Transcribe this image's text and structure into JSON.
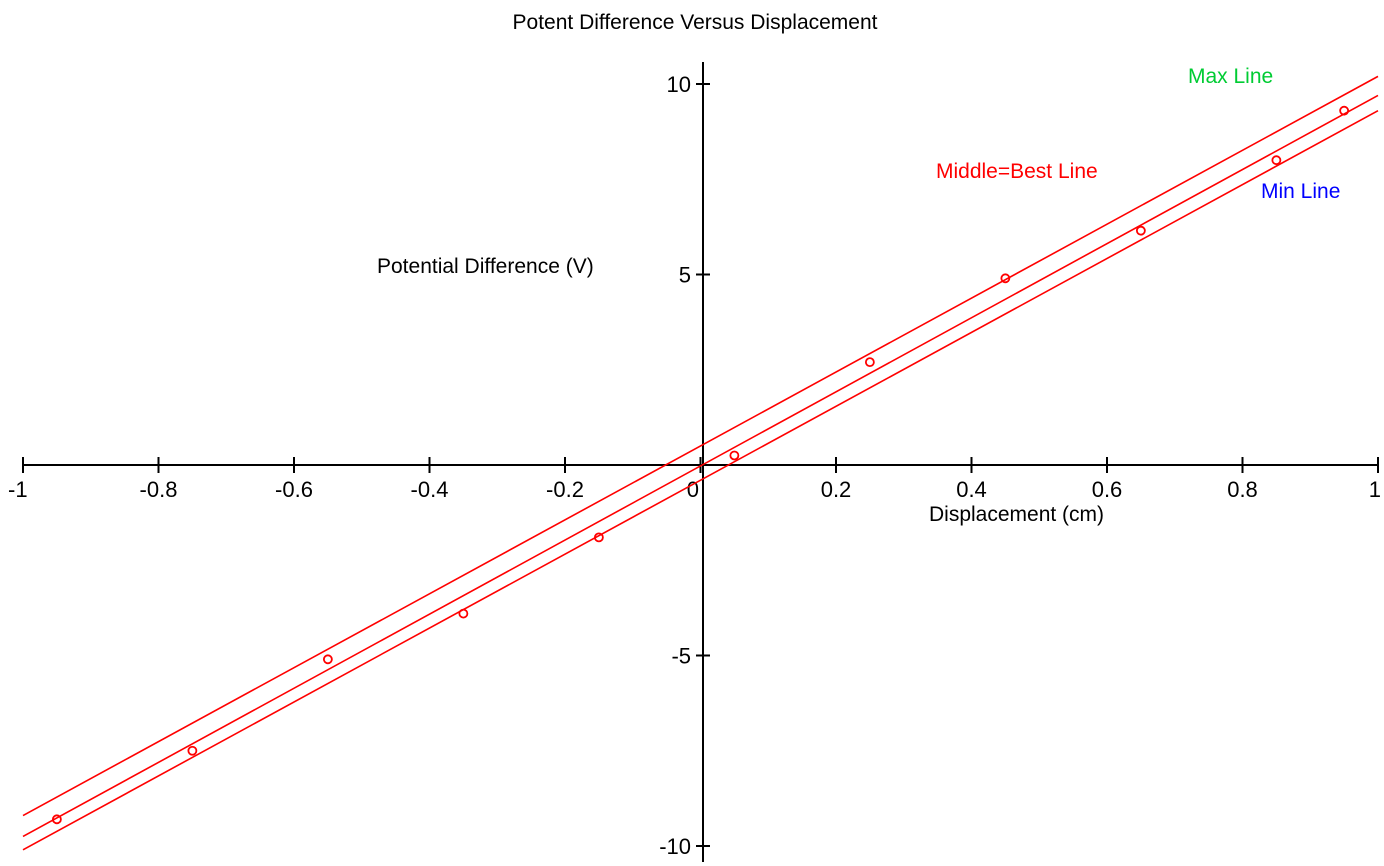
{
  "chart_data": {
    "type": "scatter",
    "title": "Potent Difference Versus Displacement",
    "xlabel": "Displacement (cm)",
    "ylabel": "Potential Difference (V)",
    "xlim": [
      -1,
      1
    ],
    "ylim": [
      -10.2,
      10.2
    ],
    "x_ticks": [
      -1,
      -0.8,
      -0.6,
      -0.4,
      -0.2,
      0,
      0.2,
      0.4,
      0.6,
      0.8,
      1
    ],
    "x_tick_labels": [
      "-1",
      "-0.8",
      "-0.6",
      "-0.4",
      "-0.2",
      "0",
      "0.2",
      "0.4",
      "0.6",
      "0.8",
      "1"
    ],
    "y_ticks": [
      -10,
      -5,
      5,
      10
    ],
    "y_tick_labels": [
      "-10",
      "-5",
      "5",
      "10"
    ],
    "grid": false,
    "points": {
      "color": "#ff0000",
      "x": [
        -0.95,
        -0.75,
        -0.55,
        -0.35,
        -0.15,
        0.05,
        0.25,
        0.45,
        0.65,
        0.85,
        0.95
      ],
      "y": [
        -9.3,
        -7.5,
        -5.1,
        -3.9,
        -1.9,
        0.25,
        2.7,
        4.9,
        6.15,
        8.0,
        9.3
      ]
    },
    "lines": [
      {
        "x": [
          -1,
          1
        ],
        "y": [
          -9.2,
          10.2
        ],
        "color": "#ff0000"
      },
      {
        "x": [
          -1,
          1
        ],
        "y": [
          -9.75,
          9.7
        ],
        "color": "#ff0000"
      },
      {
        "x": [
          -1,
          1
        ],
        "y": [
          -10.1,
          9.3
        ],
        "color": "#ff0000"
      }
    ],
    "annotations": [
      {
        "text": "Max Line",
        "color": "#00cc33"
      },
      {
        "text": "Middle=Best Line",
        "color": "#ff0000"
      },
      {
        "text": "Min Line",
        "color": "#0000ff"
      }
    ]
  }
}
